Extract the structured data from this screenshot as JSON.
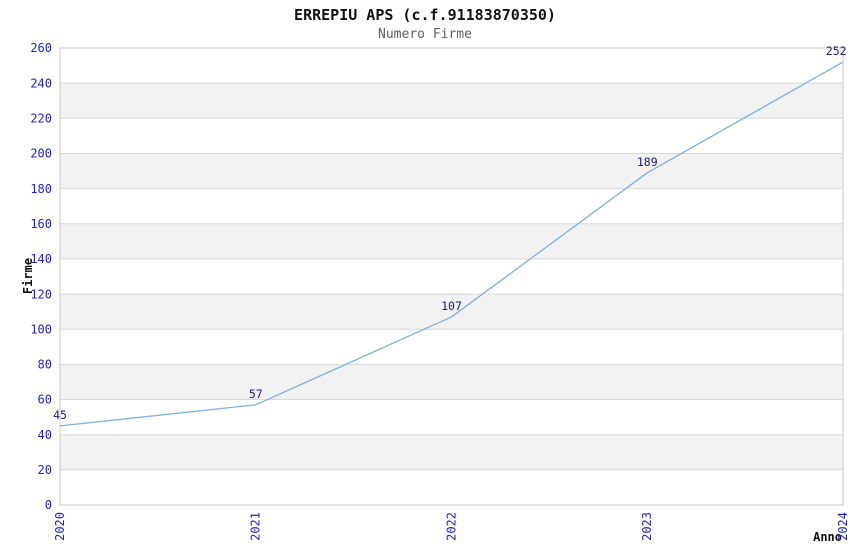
{
  "header": {
    "title": "ERREPIU APS (c.f.91183870350)",
    "subtitle": "Numero Firme"
  },
  "chart_data": {
    "type": "line",
    "title": "ERREPIU APS (c.f.91183870350)",
    "subtitle": "Numero Firme",
    "xlabel": "Anno",
    "ylabel": "Firme",
    "categories": [
      "2020",
      "2021",
      "2022",
      "2023",
      "2024"
    ],
    "series": [
      {
        "name": "Numero Firme",
        "values": [
          45,
          57,
          107,
          189,
          252
        ]
      }
    ],
    "point_labels": [
      "45",
      "57",
      "107",
      "189",
      "252"
    ],
    "ylim": [
      0,
      260
    ],
    "ytick_step": 20,
    "yticks": [
      "0",
      "20",
      "40",
      "60",
      "80",
      "100",
      "120",
      "140",
      "160",
      "180",
      "200",
      "220",
      "240",
      "260"
    ],
    "grid": "horizontal-gridlines-with-alternating-bands",
    "legend": "none",
    "colors": {
      "line": "#7fb0e0",
      "tick_label": "#2222cc",
      "point_label": "#1a1a80",
      "band_fill": "#f2f2f2",
      "gridline": "#d9d9d9",
      "plot_border": "#c8c8c8",
      "title": "#111111",
      "subtitle": "#606060",
      "axis_label": "#111111",
      "background": "#ffffff"
    }
  }
}
